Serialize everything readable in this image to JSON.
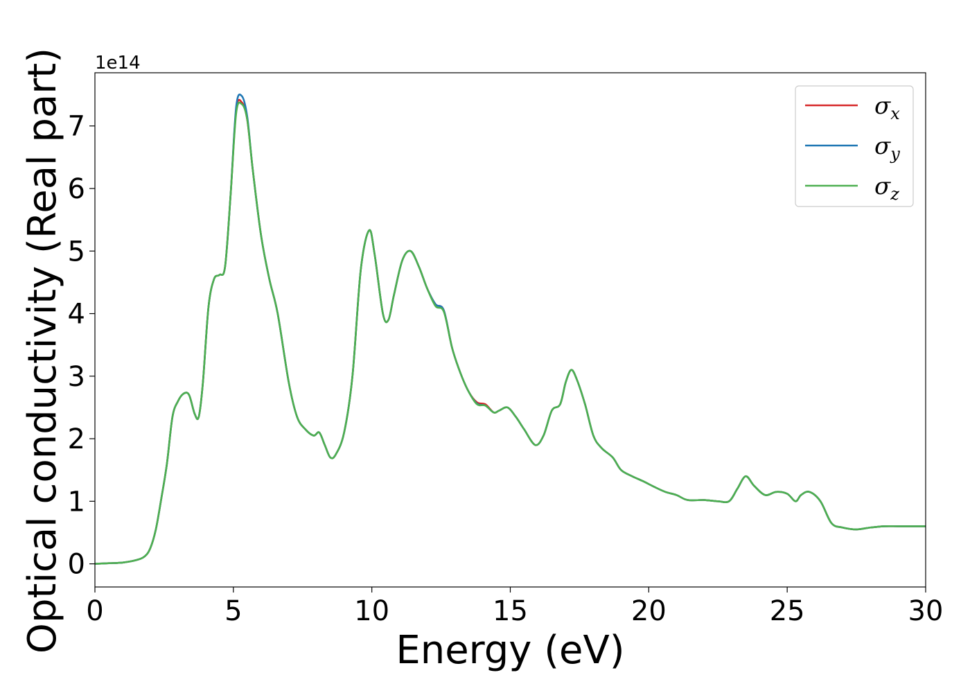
{
  "chart_data": {
    "type": "line",
    "xlabel": "Energy (eV)",
    "ylabel": "Optical conductivity (Real part)",
    "y_offset_label": "1e14",
    "xlim": [
      0,
      30
    ],
    "ylim": [
      -0.37,
      7.85
    ],
    "x_ticks": [
      0,
      5,
      10,
      15,
      20,
      25,
      30
    ],
    "y_ticks": [
      0,
      1,
      2,
      3,
      4,
      5,
      6,
      7
    ],
    "x_tick_labels": [
      "0",
      "5",
      "10",
      "15",
      "20",
      "25",
      "30"
    ],
    "y_tick_labels": [
      "0",
      "1",
      "2",
      "3",
      "4",
      "5",
      "6",
      "7"
    ],
    "grid": false,
    "legend_position": "top-right",
    "x": [
      0,
      0.5,
      1.0,
      1.5,
      1.8,
      2.0,
      2.2,
      2.4,
      2.6,
      2.8,
      3.0,
      3.2,
      3.4,
      3.6,
      3.75,
      3.9,
      4.1,
      4.3,
      4.5,
      4.7,
      4.9,
      5.1,
      5.3,
      5.5,
      5.7,
      6.0,
      6.3,
      6.6,
      7.0,
      7.3,
      7.6,
      7.9,
      8.1,
      8.3,
      8.5,
      8.7,
      9.0,
      9.3,
      9.6,
      9.9,
      10.1,
      10.4,
      10.6,
      10.8,
      11.1,
      11.4,
      11.7,
      12.0,
      12.3,
      12.6,
      12.9,
      13.2,
      13.5,
      13.8,
      14.1,
      14.4,
      14.6,
      14.9,
      15.2,
      15.5,
      15.9,
      16.2,
      16.5,
      16.8,
      17.0,
      17.2,
      17.4,
      17.7,
      18.0,
      18.3,
      18.7,
      19.0,
      19.4,
      19.8,
      20.2,
      20.6,
      21.0,
      21.4,
      22.0,
      22.5,
      22.9,
      23.2,
      23.5,
      23.8,
      24.2,
      24.6,
      25.0,
      25.3,
      25.5,
      25.8,
      26.2,
      26.6,
      27.0,
      27.5,
      28.0,
      28.5,
      29.0,
      29.5,
      30.0
    ],
    "series": [
      {
        "name": "σ",
        "subscript": "x",
        "color": "#d62728",
        "values": [
          0.0,
          0.01,
          0.02,
          0.06,
          0.12,
          0.25,
          0.55,
          1.05,
          1.6,
          2.35,
          2.6,
          2.72,
          2.7,
          2.4,
          2.35,
          2.9,
          4.1,
          4.55,
          4.62,
          4.75,
          5.9,
          7.25,
          7.38,
          7.1,
          6.3,
          5.25,
          4.55,
          4.0,
          2.9,
          2.35,
          2.15,
          2.05,
          2.1,
          1.9,
          1.7,
          1.75,
          2.1,
          3.0,
          4.7,
          5.33,
          4.95,
          4.0,
          3.9,
          4.3,
          4.85,
          5.0,
          4.75,
          4.4,
          4.15,
          4.05,
          3.45,
          3.05,
          2.75,
          2.58,
          2.55,
          2.42,
          2.45,
          2.5,
          2.35,
          2.15,
          1.9,
          2.05,
          2.45,
          2.55,
          2.9,
          3.1,
          2.95,
          2.55,
          2.05,
          1.85,
          1.7,
          1.5,
          1.4,
          1.32,
          1.23,
          1.15,
          1.1,
          1.02,
          1.02,
          1.0,
          1.0,
          1.2,
          1.4,
          1.25,
          1.1,
          1.15,
          1.12,
          1.0,
          1.1,
          1.15,
          1.0,
          0.65,
          0.58,
          0.55,
          0.58,
          0.6,
          0.6,
          0.6,
          0.6
        ]
      },
      {
        "name": "σ",
        "subscript": "y",
        "color": "#1f77b4",
        "values": [
          0.0,
          0.01,
          0.02,
          0.06,
          0.12,
          0.25,
          0.55,
          1.05,
          1.6,
          2.35,
          2.6,
          2.72,
          2.7,
          2.4,
          2.35,
          2.9,
          4.1,
          4.55,
          4.62,
          4.75,
          5.9,
          7.3,
          7.48,
          7.15,
          6.3,
          5.25,
          4.55,
          4.0,
          2.9,
          2.35,
          2.15,
          2.05,
          2.1,
          1.9,
          1.7,
          1.75,
          2.1,
          3.0,
          4.7,
          5.33,
          4.95,
          4.0,
          3.9,
          4.3,
          4.85,
          5.0,
          4.75,
          4.4,
          4.15,
          4.05,
          3.45,
          3.05,
          2.75,
          2.56,
          2.53,
          2.42,
          2.45,
          2.5,
          2.35,
          2.15,
          1.9,
          2.05,
          2.45,
          2.55,
          2.9,
          3.1,
          2.95,
          2.55,
          2.05,
          1.85,
          1.7,
          1.5,
          1.4,
          1.32,
          1.23,
          1.15,
          1.1,
          1.02,
          1.02,
          1.0,
          1.0,
          1.2,
          1.4,
          1.25,
          1.1,
          1.15,
          1.12,
          1.0,
          1.1,
          1.15,
          1.0,
          0.65,
          0.58,
          0.55,
          0.58,
          0.6,
          0.6,
          0.6,
          0.6
        ]
      },
      {
        "name": "σ",
        "subscript": "z",
        "color": "#4caf50",
        "values": [
          0.0,
          0.01,
          0.02,
          0.06,
          0.12,
          0.25,
          0.55,
          1.05,
          1.6,
          2.35,
          2.6,
          2.72,
          2.7,
          2.4,
          2.35,
          2.9,
          4.1,
          4.55,
          4.62,
          4.75,
          5.9,
          7.2,
          7.35,
          7.1,
          6.3,
          5.25,
          4.55,
          4.0,
          2.9,
          2.35,
          2.15,
          2.05,
          2.1,
          1.9,
          1.7,
          1.75,
          2.1,
          3.0,
          4.7,
          5.33,
          4.95,
          4.0,
          3.9,
          4.3,
          4.85,
          5.0,
          4.75,
          4.4,
          4.12,
          4.03,
          3.45,
          3.05,
          2.75,
          2.55,
          2.53,
          2.42,
          2.45,
          2.5,
          2.35,
          2.15,
          1.9,
          2.05,
          2.45,
          2.55,
          2.9,
          3.1,
          2.95,
          2.55,
          2.05,
          1.85,
          1.7,
          1.5,
          1.4,
          1.32,
          1.23,
          1.15,
          1.1,
          1.02,
          1.02,
          1.0,
          1.0,
          1.2,
          1.4,
          1.25,
          1.1,
          1.15,
          1.12,
          1.0,
          1.1,
          1.15,
          1.0,
          0.65,
          0.58,
          0.55,
          0.58,
          0.6,
          0.6,
          0.6,
          0.6
        ]
      }
    ]
  }
}
